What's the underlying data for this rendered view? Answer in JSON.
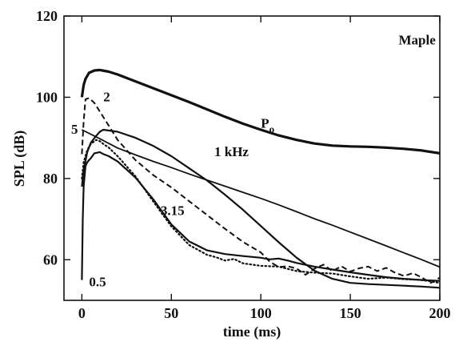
{
  "chart_data": {
    "type": "line",
    "xlabel": "time (ms)",
    "ylabel": "SPL (dB)",
    "xlim": [
      -10,
      200
    ],
    "ylim": [
      50,
      120
    ],
    "xticks": [
      0,
      50,
      100,
      150,
      200
    ],
    "yticks": [
      60,
      80,
      100,
      120
    ],
    "grid": false,
    "legend": "none",
    "annotations": [
      {
        "text": "Maple",
        "x": 177,
        "y": 113
      },
      {
        "text": "P",
        "sub": "o",
        "x": 100,
        "y": 92.5
      },
      {
        "text": "1 kHz",
        "x": 74,
        "y": 85.5
      },
      {
        "text": "2",
        "x": 12,
        "y": 99
      },
      {
        "text": "5",
        "x": -6,
        "y": 91
      },
      {
        "text": "3.15",
        "x": 44,
        "y": 71
      },
      {
        "text": "0.5",
        "x": 4,
        "y": 53.5
      }
    ],
    "series": [
      {
        "name": "P",
        "style": "solid",
        "width": 3.2,
        "x": [
          0,
          1,
          2,
          4,
          7,
          10,
          15,
          20,
          30,
          40,
          50,
          60,
          70,
          80,
          90,
          100,
          110,
          120,
          130,
          140,
          150,
          160,
          170,
          180,
          190,
          200
        ],
        "y": [
          100,
          103,
          104.5,
          106,
          106.6,
          106.7,
          106.3,
          105.6,
          103.9,
          102.2,
          100.5,
          98.8,
          97,
          95.2,
          93.5,
          92,
          90.6,
          89.5,
          88.6,
          88.1,
          87.9,
          87.8,
          87.6,
          87.3,
          86.9,
          86.2
        ]
      },
      {
        "name": "1 kHz",
        "style": "solid",
        "width": 2.2,
        "x": [
          0,
          1,
          3,
          5,
          8,
          10,
          12,
          20,
          30,
          40,
          50,
          60,
          70,
          80,
          90,
          100,
          110,
          120,
          130,
          140,
          150,
          160,
          170,
          180,
          190,
          200
        ],
        "y": [
          78,
          82,
          86.5,
          88.8,
          90.5,
          91.5,
          92,
          91.5,
          90,
          88,
          85.5,
          82.5,
          79.5,
          76,
          72.3,
          68.3,
          64.3,
          60.5,
          57.3,
          55.3,
          54.3,
          54,
          53.8,
          53.6,
          53.4,
          53.1
        ]
      },
      {
        "name": "2",
        "style": "dashed",
        "width": 2.0,
        "x": [
          0,
          1,
          2,
          4,
          7,
          10,
          15,
          20,
          30,
          40,
          50,
          60,
          70,
          80,
          90,
          100,
          105,
          110,
          115,
          120,
          125,
          130,
          135,
          140,
          145,
          150,
          155,
          160,
          165,
          170,
          175,
          180,
          185,
          190,
          195,
          200
        ],
        "y": [
          86,
          94,
          99.5,
          99.8,
          98.6,
          96.5,
          93,
          89.5,
          84.5,
          80.8,
          77.8,
          74.4,
          71,
          67.6,
          64.4,
          61.8,
          59.5,
          58.2,
          58.4,
          57.8,
          56.3,
          57.8,
          58.8,
          57.2,
          58.4,
          57.1,
          57.9,
          58.3,
          57.2,
          58,
          56.8,
          56,
          56.7,
          55.6,
          54.3,
          55.6
        ]
      },
      {
        "name": "5",
        "style": "solid",
        "width": 1.8,
        "x": [
          0,
          10,
          20,
          30,
          40,
          50,
          60,
          70,
          80,
          90,
          100,
          110,
          120,
          130,
          140,
          150,
          160,
          170,
          180,
          190,
          200
        ],
        "y": [
          92,
          89.8,
          87.5,
          85.8,
          84.2,
          82.7,
          81.1,
          79.6,
          78.1,
          76.6,
          75.1,
          73.5,
          71.8,
          70.1,
          68.5,
          66.8,
          65.1,
          63.4,
          61.7,
          60,
          58.2
        ]
      },
      {
        "name": "3.15",
        "style": "dotted",
        "width": 2.2,
        "x": [
          0,
          1,
          3,
          5,
          8,
          10,
          12,
          15,
          20,
          30,
          40,
          50,
          60,
          70,
          75,
          80,
          85,
          90,
          100,
          110,
          120,
          130,
          140,
          150,
          160,
          170,
          180,
          190,
          200
        ],
        "y": [
          80,
          84,
          87,
          88.5,
          89.5,
          89.2,
          88.5,
          87.6,
          85.5,
          80.5,
          74.3,
          68.2,
          63.6,
          61.2,
          60.6,
          59.8,
          60.2,
          59.1,
          58.5,
          58.3,
          57.2,
          56.8,
          56.6,
          55.9,
          55.3,
          55.6,
          55.2,
          55,
          54.3
        ]
      },
      {
        "name": "0.5",
        "style": "solid",
        "width": 2.2,
        "x": [
          0,
          0.5,
          1,
          2,
          3,
          4,
          5,
          7,
          10,
          12,
          15,
          20,
          30,
          40,
          50,
          60,
          70,
          80,
          90,
          100,
          105,
          110,
          115,
          120,
          130,
          140,
          150,
          160,
          170,
          180,
          190,
          200
        ],
        "y": [
          55,
          70,
          78,
          83,
          84,
          84.5,
          85,
          86.2,
          86.5,
          86,
          85.5,
          84.2,
          80.2,
          74.8,
          68.7,
          64.5,
          62.3,
          61.4,
          60.9,
          60.5,
          60.1,
          60.3,
          59.8,
          59.2,
          58.3,
          57.6,
          56.9,
          56.3,
          55.7,
          55.3,
          55,
          54.8
        ]
      }
    ]
  }
}
